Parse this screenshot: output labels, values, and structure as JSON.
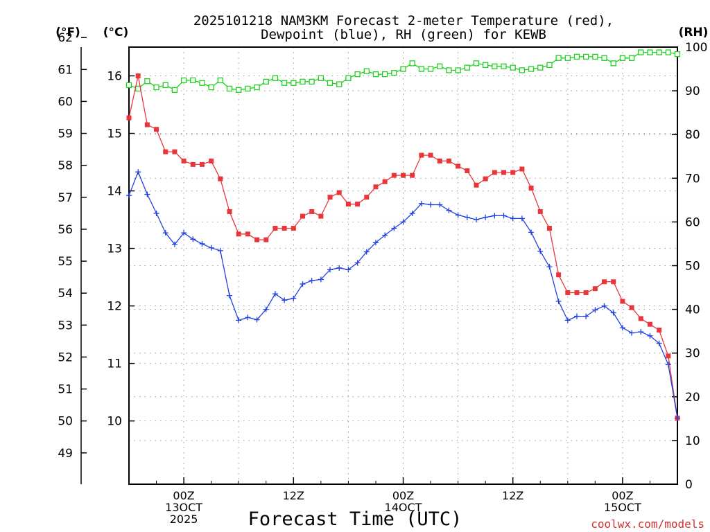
{
  "chart_data": {
    "type": "line",
    "title_line1": "2025101218 NAM3KM Forecast 2-meter Temperature (red),",
    "title_line2": "Dewpoint (blue), RH (green) for KEWB",
    "xlabel": "Forecast Time (UTC)",
    "credit": "coolwx.com/models",
    "units": {
      "fahrenheit": "(°F)",
      "celsius": "(°C)",
      "rh": "(RH)"
    },
    "colors": {
      "temperature": "#e8363a",
      "dewpoint": "#2040e0",
      "rh": "#20d020",
      "grid": "#999999",
      "credit": "#d03030"
    },
    "x_range_hours": [
      18,
      78
    ],
    "x_ticks": [
      {
        "hour": 24,
        "line1": "00Z",
        "line2": "13OCT",
        "line3": "2025"
      },
      {
        "hour": 36,
        "line1": "12Z",
        "line2": "",
        "line3": ""
      },
      {
        "hour": 48,
        "line1": "00Z",
        "line2": "14OCT",
        "line3": ""
      },
      {
        "hour": 60,
        "line1": "12Z",
        "line2": "",
        "line3": ""
      },
      {
        "hour": 72,
        "line1": "00Z",
        "line2": "15OCT",
        "line3": ""
      }
    ],
    "celsius_range": [
      8.9,
      16.5
    ],
    "celsius_ticks": [
      "10",
      "11",
      "12",
      "13",
      "14",
      "15",
      "16"
    ],
    "fahrenheit_ticks": [
      "49",
      "50",
      "51",
      "52",
      "53",
      "54",
      "55",
      "56",
      "57",
      "58",
      "59",
      "60",
      "61",
      "62"
    ],
    "rh_range": [
      0,
      100
    ],
    "rh_ticks": [
      "0",
      "10",
      "20",
      "30",
      "40",
      "50",
      "60",
      "70",
      "80",
      "90",
      "100"
    ],
    "hours": [
      18,
      19,
      20,
      21,
      22,
      23,
      24,
      25,
      26,
      27,
      28,
      29,
      30,
      31,
      32,
      33,
      34,
      35,
      36,
      37,
      38,
      39,
      40,
      41,
      42,
      43,
      44,
      45,
      46,
      47,
      48,
      49,
      50,
      51,
      52,
      53,
      54,
      55,
      56,
      57,
      58,
      59,
      60,
      61,
      62,
      63,
      64,
      65,
      66,
      67,
      68,
      69,
      70,
      71,
      72,
      73,
      74,
      75,
      76,
      77,
      78
    ],
    "series": [
      {
        "name": "Temperature",
        "unit": "C",
        "values": [
          15.27,
          16.0,
          15.15,
          15.07,
          14.68,
          14.68,
          14.52,
          14.46,
          14.46,
          14.52,
          14.21,
          13.64,
          13.25,
          13.25,
          13.15,
          13.15,
          13.35,
          13.35,
          13.35,
          13.56,
          13.64,
          13.56,
          13.89,
          13.97,
          13.77,
          13.77,
          13.89,
          14.07,
          14.16,
          14.27,
          14.27,
          14.27,
          14.62,
          14.62,
          14.52,
          14.52,
          14.43,
          14.35,
          14.1,
          14.21,
          14.32,
          14.32,
          14.32,
          14.38,
          14.05,
          13.64,
          13.35,
          12.54,
          12.23,
          12.23,
          12.23,
          12.3,
          12.42,
          12.42,
          12.08,
          11.97,
          11.78,
          11.68,
          11.58,
          11.13,
          10.05
        ]
      },
      {
        "name": "Dewpoint",
        "unit": "C",
        "values": [
          13.92,
          14.33,
          13.94,
          13.61,
          13.27,
          13.07,
          13.27,
          13.16,
          13.08,
          13.01,
          12.96,
          12.18,
          11.75,
          11.8,
          11.76,
          11.94,
          12.21,
          12.1,
          12.13,
          12.38,
          12.44,
          12.46,
          12.63,
          12.66,
          12.63,
          12.75,
          12.94,
          13.1,
          13.23,
          13.35,
          13.46,
          13.61,
          13.78,
          13.76,
          13.76,
          13.66,
          13.58,
          13.54,
          13.5,
          13.54,
          13.57,
          13.57,
          13.52,
          13.52,
          13.28,
          12.95,
          12.68,
          12.08,
          11.75,
          11.82,
          11.82,
          11.93,
          12.0,
          11.88,
          11.62,
          11.53,
          11.55,
          11.48,
          11.35,
          10.98,
          10.05
        ]
      },
      {
        "name": "RH",
        "unit": "%",
        "values": [
          91.3,
          90.5,
          92.2,
          90.8,
          91.3,
          90.2,
          92.4,
          92.4,
          91.8,
          90.8,
          92.4,
          90.5,
          90.2,
          90.5,
          90.8,
          92.1,
          92.9,
          91.8,
          91.8,
          92.1,
          92.1,
          92.9,
          91.8,
          91.5,
          92.9,
          93.8,
          94.5,
          93.8,
          93.8,
          94.1,
          95.0,
          96.3,
          95.0,
          95.0,
          95.6,
          94.7,
          94.7,
          95.3,
          96.3,
          95.9,
          95.6,
          95.6,
          95.3,
          94.7,
          95.0,
          95.3,
          95.9,
          97.5,
          97.5,
          97.8,
          97.8,
          97.8,
          97.5,
          96.3,
          97.5,
          97.5,
          98.8,
          98.8,
          98.8,
          98.8,
          98.4
        ]
      }
    ]
  }
}
